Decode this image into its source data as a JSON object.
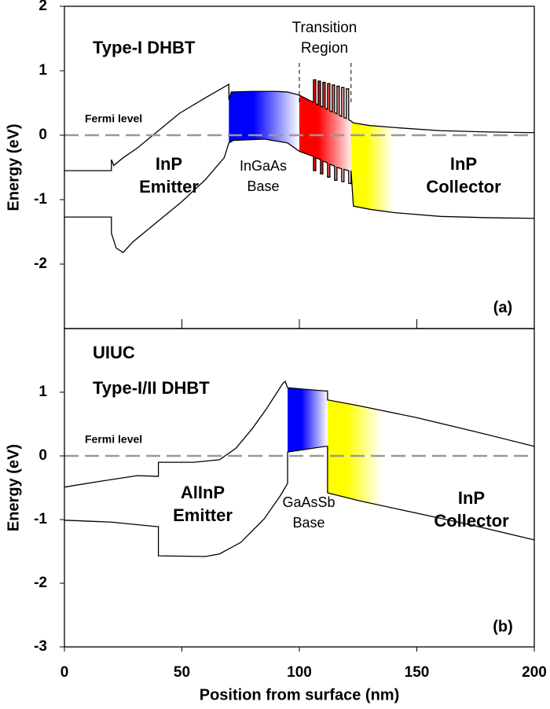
{
  "chart_data": [
    {
      "type": "line",
      "ylabel": "Energy (eV)",
      "xlim": [
        0,
        200
      ],
      "xticks": [
        0,
        50,
        100,
        150,
        200
      ],
      "ylim": [
        -3,
        2
      ],
      "yticks": [
        -2,
        -1,
        0,
        1,
        2
      ],
      "fermi_level": 0,
      "transition_region": [
        100,
        122
      ],
      "regions": [
        {
          "x": [
            70,
            100
          ],
          "color": "#0000ff"
        },
        {
          "x": [
            100,
            123
          ],
          "color": "#ff0000"
        },
        {
          "x": [
            122,
            140
          ],
          "color": "#ffff00"
        }
      ],
      "series": [
        {
          "color": "#000000",
          "x": [
            0,
            20,
            20,
            21,
            25,
            31,
            39,
            49,
            60,
            70,
            70,
            71,
            80,
            90,
            95,
            100,
            106,
            106,
            107,
            107,
            108,
            108,
            109,
            109,
            110,
            110,
            111,
            111,
            112,
            112,
            113,
            113,
            114,
            114,
            115,
            115,
            116,
            116,
            117,
            117,
            118,
            118,
            119,
            119,
            120,
            120,
            121,
            121,
            122,
            123,
            130,
            140,
            160,
            180,
            200
          ],
          "values": [
            -0.55,
            -0.55,
            -0.38,
            -0.47,
            -0.35,
            -0.2,
            0.04,
            0.34,
            0.58,
            0.79,
            0.55,
            0.67,
            0.68,
            0.68,
            0.67,
            0.62,
            0.51,
            0.86,
            0.86,
            0.49,
            0.47,
            0.84,
            0.84,
            0.45,
            0.44,
            0.82,
            0.82,
            0.42,
            0.4,
            0.8,
            0.8,
            0.38,
            0.36,
            0.78,
            0.78,
            0.35,
            0.33,
            0.76,
            0.76,
            0.31,
            0.29,
            0.74,
            0.74,
            0.27,
            0.26,
            0.72,
            0.72,
            0.24,
            0.22,
            0.19,
            0.15,
            0.12,
            0.07,
            0.05,
            0.04
          ]
        },
        {
          "color": "#000000",
          "x": [
            0,
            20,
            20,
            22,
            25,
            29,
            39,
            50,
            60,
            68,
            70,
            72,
            85,
            95,
            100,
            106,
            106,
            107,
            107,
            109,
            109,
            110,
            110,
            112,
            112,
            113,
            113,
            115,
            115,
            116,
            116,
            118,
            118,
            119,
            119,
            121,
            121,
            122,
            122,
            123,
            130,
            140,
            160,
            180,
            200
          ],
          "values": [
            -1.27,
            -1.27,
            -1.52,
            -1.75,
            -1.82,
            -1.66,
            -1.36,
            -1.03,
            -0.69,
            -0.35,
            -0.12,
            -0.08,
            -0.06,
            -0.12,
            -0.25,
            -0.33,
            -0.55,
            -0.55,
            -0.35,
            -0.38,
            -0.6,
            -0.6,
            -0.4,
            -0.43,
            -0.65,
            -0.65,
            -0.45,
            -0.48,
            -0.7,
            -0.7,
            -0.5,
            -0.52,
            -0.72,
            -0.72,
            -0.53,
            -0.55,
            -0.75,
            -0.75,
            -0.55,
            -1.1,
            -1.15,
            -1.2,
            -1.26,
            -1.28,
            -1.29
          ]
        }
      ],
      "annotations": [
        [
          "Type-I DHBT"
        ],
        [
          "Transition",
          "Region"
        ],
        [
          "Fermi level"
        ],
        [
          "InP",
          "Emitter"
        ],
        [
          "InGaAs",
          "Base"
        ],
        [
          "InP",
          "Collector"
        ],
        [
          "(a)"
        ]
      ]
    },
    {
      "type": "line",
      "ylabel": "Energy (eV)",
      "xlabel": "Position from surface (nm)",
      "xlim": [
        0,
        200
      ],
      "xticks": [
        0,
        50,
        100,
        150,
        200
      ],
      "ylim": [
        -3,
        2
      ],
      "yticks": [
        -3,
        -2,
        -1,
        0,
        1
      ],
      "fermi_level": 0,
      "regions": [
        {
          "x": [
            95,
            112
          ],
          "color": "#0000ff"
        },
        {
          "x": [
            112,
            135
          ],
          "color": "#ffff00"
        }
      ],
      "series": [
        {
          "color": "#000000",
          "x": [
            0,
            15,
            31,
            39,
            40,
            40,
            55,
            66,
            73,
            80,
            86,
            93,
            94,
            95,
            111,
            112,
            112,
            125,
            150,
            175,
            200
          ],
          "values": [
            -0.49,
            -0.4,
            -0.31,
            -0.32,
            -0.32,
            -0.1,
            -0.1,
            -0.06,
            0.12,
            0.43,
            0.74,
            1.14,
            1.17,
            1.07,
            1.02,
            1.02,
            0.88,
            0.79,
            0.6,
            0.38,
            0.15
          ]
        },
        {
          "color": "#000000",
          "x": [
            0,
            20,
            39,
            40,
            40,
            60,
            66,
            75,
            85,
            92,
            95,
            95,
            111,
            112,
            112,
            125,
            150,
            175,
            200
          ],
          "values": [
            -1.01,
            -1.04,
            -1.11,
            -1.11,
            -1.57,
            -1.58,
            -1.54,
            -1.36,
            -0.99,
            -0.62,
            -0.43,
            0.06,
            0.15,
            0.15,
            -0.58,
            -0.7,
            -0.9,
            -1.1,
            -1.32
          ]
        }
      ],
      "annotations": [
        [
          "UIUC"
        ],
        [
          "Type-I/II DHBT"
        ],
        [
          "Fermi level"
        ],
        [
          "AlInP",
          "Emitter"
        ],
        [
          "GaAsSb",
          "Base"
        ],
        [
          "InP",
          "Collector"
        ],
        [
          "(b)"
        ]
      ]
    }
  ]
}
